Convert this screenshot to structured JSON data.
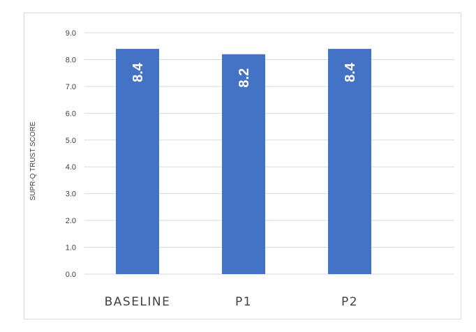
{
  "chart_data": {
    "type": "bar",
    "title": "",
    "xlabel": "",
    "ylabel": "SUPR-Q TRUST SCORE",
    "categories": [
      "BASELINE",
      "P1",
      "P2"
    ],
    "values": [
      8.4,
      8.2,
      8.4
    ],
    "value_labels": [
      "8.4",
      "8.2",
      "8.4"
    ],
    "ylim": [
      0,
      9
    ],
    "yticks": [
      0,
      1,
      2,
      3,
      4,
      5,
      6,
      7,
      8,
      9
    ],
    "ytick_labels": [
      "0.0",
      "1.0",
      "2.0",
      "3.0",
      "4.0",
      "5.0",
      "6.0",
      "7.0",
      "8.0",
      "9.0"
    ],
    "grid": true,
    "legend": "none",
    "colors": {
      "bar": "#4472c4",
      "grid": "#d9d9d9",
      "text": "#404040"
    }
  }
}
